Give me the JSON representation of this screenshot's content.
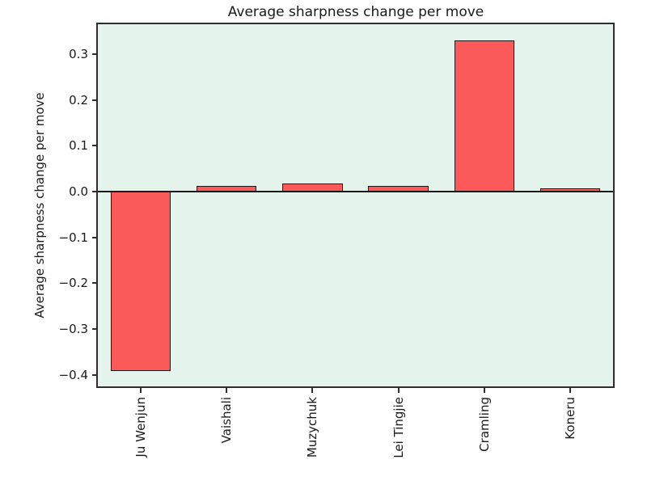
{
  "chart_data": {
    "type": "bar",
    "title": "Average sharpness change per move",
    "xlabel": "",
    "ylabel": "Average sharpness change per move",
    "categories": [
      "Ju Wenjun",
      "Vaishali",
      "Muzychuk",
      "Lei Tingjie",
      "Cramling",
      "Koneru"
    ],
    "values": [
      -0.391,
      0.012,
      0.018,
      0.013,
      0.33,
      0.007
    ],
    "yticks": [
      0.3,
      0.2,
      0.1,
      0.0,
      -0.1,
      -0.2,
      -0.3,
      -0.4
    ],
    "ytick_labels": [
      "0.3",
      "0.2",
      "0.1",
      "0.0",
      "−0.1",
      "−0.2",
      "−0.3",
      "−0.4"
    ],
    "ylim": [
      -0.425,
      0.365
    ],
    "grid": false,
    "legend": "none",
    "x_tick_rotation": 90,
    "bar_width_fraction": 0.7,
    "colors": {
      "bar_fill": "#fa5a5a",
      "bar_edge": "#1a1a1a",
      "plot_background": "#e4f4ed",
      "figure_background": "#ffffff",
      "spine": "#2e2e2e",
      "text": "#1a1a1a",
      "zero_line": "#1a1a1a"
    }
  }
}
